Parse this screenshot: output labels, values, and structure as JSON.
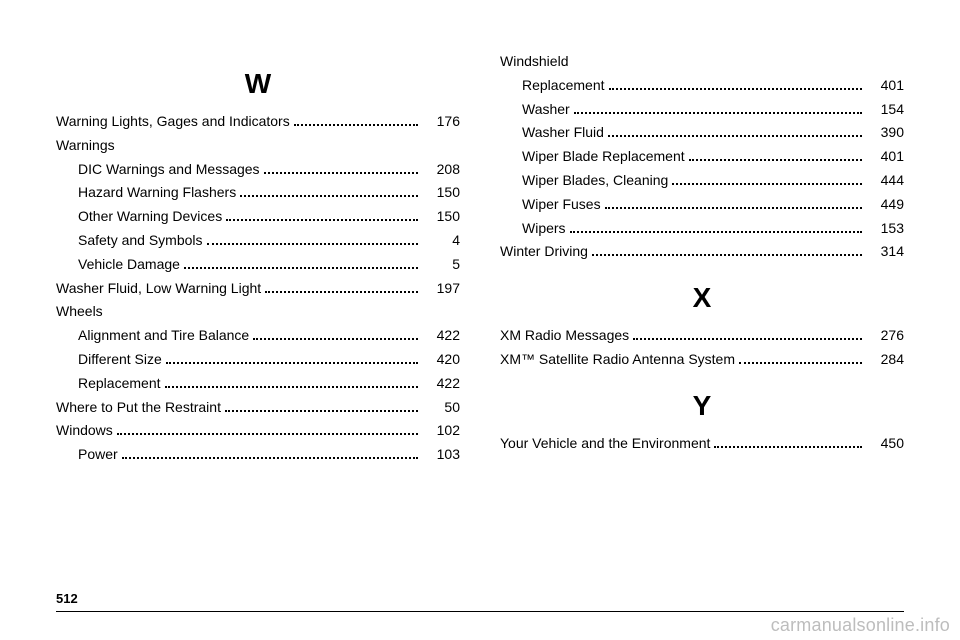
{
  "page_number": "512",
  "watermark": "carmanualsonline.info",
  "left_column": [
    {
      "type": "heading",
      "text": "W"
    },
    {
      "type": "entry",
      "indent": false,
      "label": "Warning Lights, Gages and Indicators",
      "page": "176"
    },
    {
      "type": "entry",
      "indent": false,
      "label": "Warnings",
      "page": "",
      "nolead": true
    },
    {
      "type": "entry",
      "indent": true,
      "label": "DIC Warnings and Messages",
      "page": "208"
    },
    {
      "type": "entry",
      "indent": true,
      "label": "Hazard Warning Flashers",
      "page": "150"
    },
    {
      "type": "entry",
      "indent": true,
      "label": "Other Warning Devices",
      "page": "150"
    },
    {
      "type": "entry",
      "indent": true,
      "label": "Safety and Symbols",
      "page": "4"
    },
    {
      "type": "entry",
      "indent": true,
      "label": "Vehicle Damage",
      "page": "5"
    },
    {
      "type": "entry",
      "indent": false,
      "label": "Washer Fluid, Low Warning Light",
      "page": "197"
    },
    {
      "type": "entry",
      "indent": false,
      "label": "Wheels",
      "page": "",
      "nolead": true
    },
    {
      "type": "entry",
      "indent": true,
      "label": "Alignment and Tire Balance",
      "page": "422"
    },
    {
      "type": "entry",
      "indent": true,
      "label": "Different Size",
      "page": "420"
    },
    {
      "type": "entry",
      "indent": true,
      "label": "Replacement",
      "page": "422"
    },
    {
      "type": "entry",
      "indent": false,
      "label": "Where to Put the Restraint",
      "page": "50"
    },
    {
      "type": "entry",
      "indent": false,
      "label": "Windows",
      "page": "102"
    },
    {
      "type": "entry",
      "indent": true,
      "label": "Power",
      "page": "103"
    }
  ],
  "right_column": [
    {
      "type": "entry",
      "indent": false,
      "label": "Windshield",
      "page": "",
      "nolead": true
    },
    {
      "type": "entry",
      "indent": true,
      "label": "Replacement",
      "page": "401"
    },
    {
      "type": "entry",
      "indent": true,
      "label": "Washer",
      "page": "154"
    },
    {
      "type": "entry",
      "indent": true,
      "label": "Washer Fluid",
      "page": "390"
    },
    {
      "type": "entry",
      "indent": true,
      "label": "Wiper Blade Replacement",
      "page": "401"
    },
    {
      "type": "entry",
      "indent": true,
      "label": "Wiper Blades, Cleaning",
      "page": "444"
    },
    {
      "type": "entry",
      "indent": true,
      "label": "Wiper Fuses",
      "page": "449"
    },
    {
      "type": "entry",
      "indent": true,
      "label": "Wipers",
      "page": "153"
    },
    {
      "type": "entry",
      "indent": false,
      "label": "Winter Driving",
      "page": "314"
    },
    {
      "type": "heading",
      "text": "X"
    },
    {
      "type": "entry",
      "indent": false,
      "label": "XM Radio Messages",
      "page": "276"
    },
    {
      "type": "entry",
      "indent": false,
      "label": "XM™ Satellite Radio Antenna System",
      "page": "284"
    },
    {
      "type": "heading",
      "text": "Y"
    },
    {
      "type": "entry",
      "indent": false,
      "label": "Your Vehicle and the Environment",
      "page": "450"
    }
  ]
}
